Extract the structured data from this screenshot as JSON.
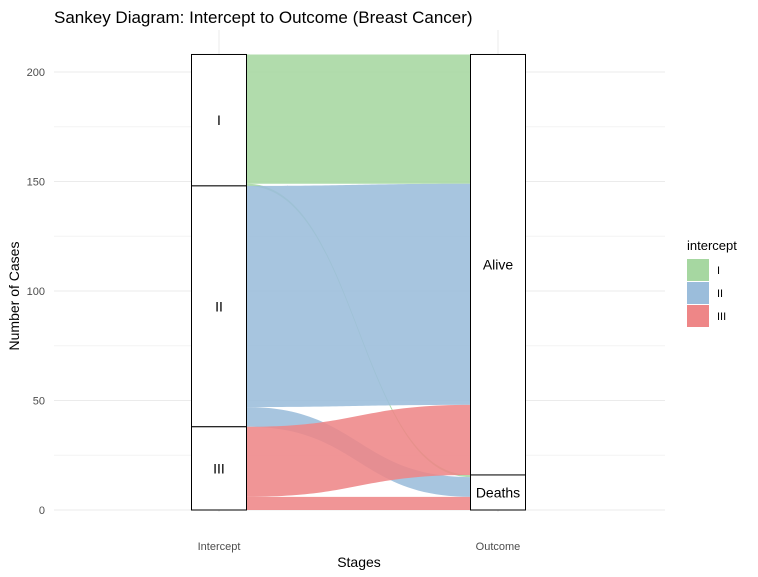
{
  "chart_data": {
    "type": "sankey",
    "title": "Sankey Diagram: Intercept to Outcome (Breast Cancer)",
    "xlabel": "Stages",
    "ylabel": "Number of Cases",
    "axes": [
      "Intercept",
      "Outcome"
    ],
    "ylim": [
      0,
      210
    ],
    "yticks": [
      0,
      50,
      100,
      150,
      200
    ],
    "grid": true,
    "legend_title": "intercept",
    "legend_position": "right",
    "intercept_strata": [
      {
        "name": "I",
        "label": "I",
        "color": "#a6d7a1",
        "value": 60
      },
      {
        "name": "II",
        "label": "II",
        "color": "#9bbddb",
        "value": 110
      },
      {
        "name": "III",
        "label": "III",
        "color": "#ee8687",
        "value": 38
      }
    ],
    "outcome_strata": [
      {
        "name": "Alive",
        "label": "Alive",
        "value": 192
      },
      {
        "name": "Deaths",
        "label": "Deaths",
        "value": 16
      }
    ],
    "flows": [
      {
        "from": "I",
        "to": "Alive",
        "value": 59
      },
      {
        "from": "I",
        "to": "Deaths",
        "value": 1
      },
      {
        "from": "II",
        "to": "Alive",
        "value": 101
      },
      {
        "from": "II",
        "to": "Deaths",
        "value": 9
      },
      {
        "from": "III",
        "to": "Alive",
        "value": 32
      },
      {
        "from": "III",
        "to": "Deaths",
        "value": 6
      }
    ]
  }
}
